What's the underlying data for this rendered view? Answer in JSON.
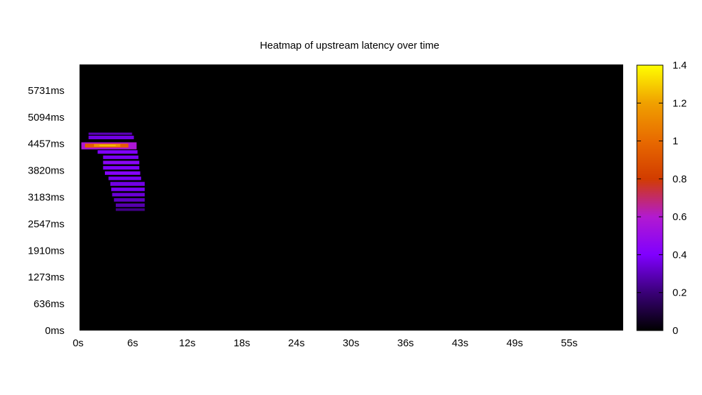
{
  "chart_data": {
    "type": "heatmap",
    "title": "Heatmap of upstream latency over time",
    "xlabel": "",
    "ylabel": "",
    "x_tick_labels": [
      "0s",
      "6s",
      "12s",
      "18s",
      "24s",
      "30s",
      "36s",
      "43s",
      "49s",
      "55s"
    ],
    "y_tick_labels": [
      "0ms",
      "636ms",
      "1273ms",
      "1910ms",
      "2547ms",
      "3183ms",
      "3820ms",
      "4457ms",
      "5094ms",
      "5731ms"
    ],
    "xlim": [
      0,
      60
    ],
    "ylim_ms": [
      0,
      6050
    ],
    "colorbar": {
      "range": [
        0,
        1.4
      ],
      "tick_labels": [
        "0",
        "0.2",
        "0.4",
        "0.6",
        "0.8",
        "1",
        "1.2",
        "1.4"
      ],
      "stops": [
        {
          "v": 0.0,
          "color": "#000000"
        },
        {
          "v": 0.2,
          "color": "#3a0078"
        },
        {
          "v": 0.4,
          "color": "#8000ff"
        },
        {
          "v": 0.6,
          "color": "#b21ad0"
        },
        {
          "v": 0.8,
          "color": "#d23c00"
        },
        {
          "v": 1.0,
          "color": "#e86a00"
        },
        {
          "v": 1.2,
          "color": "#f0a000"
        },
        {
          "v": 1.4,
          "color": "#ffff00"
        }
      ]
    },
    "background_value": 0,
    "cells": [
      {
        "x0": 1.0,
        "x1": 5.8,
        "y0": 4450,
        "y1": 4500,
        "v": 0.3
      },
      {
        "x0": 1.0,
        "x1": 6.0,
        "y0": 4350,
        "y1": 4430,
        "v": 0.36
      },
      {
        "x0": 0.2,
        "x1": 6.3,
        "y0": 4120,
        "y1": 4280,
        "v": 0.58
      },
      {
        "x0": 0.6,
        "x1": 5.4,
        "y0": 4160,
        "y1": 4250,
        "v": 0.95
      },
      {
        "x0": 1.6,
        "x1": 4.5,
        "y0": 4180,
        "y1": 4240,
        "v": 1.15
      },
      {
        "x0": 2.2,
        "x1": 4.0,
        "y0": 4190,
        "y1": 4225,
        "v": 1.25
      },
      {
        "x0": 2.0,
        "x1": 6.4,
        "y0": 4020,
        "y1": 4100,
        "v": 0.4
      },
      {
        "x0": 2.6,
        "x1": 6.5,
        "y0": 3900,
        "y1": 3980,
        "v": 0.38
      },
      {
        "x0": 2.6,
        "x1": 6.6,
        "y0": 3780,
        "y1": 3860,
        "v": 0.44
      },
      {
        "x0": 2.6,
        "x1": 6.6,
        "y0": 3660,
        "y1": 3740,
        "v": 0.4
      },
      {
        "x0": 2.8,
        "x1": 6.7,
        "y0": 3540,
        "y1": 3620,
        "v": 0.42
      },
      {
        "x0": 3.2,
        "x1": 6.8,
        "y0": 3420,
        "y1": 3500,
        "v": 0.38
      },
      {
        "x0": 3.4,
        "x1": 7.2,
        "y0": 3290,
        "y1": 3380,
        "v": 0.36
      },
      {
        "x0": 3.5,
        "x1": 7.2,
        "y0": 3170,
        "y1": 3250,
        "v": 0.38
      },
      {
        "x0": 3.6,
        "x1": 7.2,
        "y0": 3050,
        "y1": 3130,
        "v": 0.34
      },
      {
        "x0": 3.8,
        "x1": 7.2,
        "y0": 2930,
        "y1": 3010,
        "v": 0.3
      },
      {
        "x0": 4.0,
        "x1": 7.2,
        "y0": 2810,
        "y1": 2890,
        "v": 0.28
      },
      {
        "x0": 4.0,
        "x1": 7.2,
        "y0": 2720,
        "y1": 2780,
        "v": 0.22
      }
    ]
  }
}
